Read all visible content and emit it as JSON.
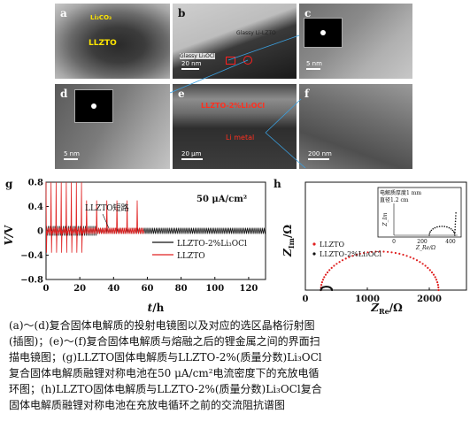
{
  "panels": {
    "a": {
      "label": "a",
      "material": "LLZTO",
      "label2": "Li₂CO₃"
    },
    "b": {
      "label": "b",
      "label_top": "Glassy Li-LZTO",
      "label_left": "Glassy Li₃OCl",
      "scale": "20 nm"
    },
    "c": {
      "label": "c",
      "scale": "5 nm"
    },
    "d": {
      "label": "d",
      "scale": "5 nm"
    },
    "e": {
      "label": "e",
      "text_top": "LLZTO-2%Li₃OCl",
      "text_mid": "Li metal",
      "scale": "20 μm"
    },
    "f": {
      "label": "f",
      "scale": "200 nm"
    }
  },
  "chart_g": {
    "label": "g",
    "current_density": "50 μA/cm²",
    "annotation": "LLZTO短路",
    "ylabel_v": "V",
    "ylabel_unit": "V",
    "xlabel_t": "t",
    "xlabel_unit": "h",
    "legend": [
      "LLZTO-2%Li₃OCl",
      "LLZTO"
    ],
    "colors": {
      "composite": "#111111",
      "llzto": "#e02020"
    },
    "chart_data": {
      "type": "line",
      "xlim": [
        0,
        130
      ],
      "ylim": [
        -0.8,
        0.8
      ],
      "xticks": [
        "0",
        "20",
        "40",
        "60",
        "80",
        "100",
        "120"
      ],
      "yticks": [
        "0.8",
        "0.4",
        "0",
        "−0.4",
        "−0.8"
      ],
      "series": [
        {
          "name": "LLZTO",
          "x_range": [
            0,
            58
          ],
          "amplitude_spikes": 0.8,
          "short_circuit_at": 58
        },
        {
          "name": "LLZTO-2%Li₃OCl",
          "x_range": [
            0,
            130
          ],
          "amplitude": 0.05
        }
      ]
    }
  },
  "chart_h": {
    "label": "h",
    "ylabel": "Z",
    "ylabel_sub": "Im",
    "ylabel_unit": "Ω",
    "xlabel": "Z",
    "xlabel_sub": "Re",
    "xlabel_unit": "Ω",
    "legend": [
      "LLZTO",
      "LLZTO-2%Li₃OCl"
    ],
    "inset_note": [
      "电解质厚度1 mm",
      "直径1.2 cm"
    ],
    "inset_ylabel": "Z_Im",
    "inset_xlabel": "Z_Re/Ω",
    "inset_xticks": [
      "0",
      "200",
      "400"
    ],
    "colors": {
      "llzto": "#e02020",
      "composite": "#111111"
    },
    "chart_data": {
      "type": "scatter",
      "xticks": [
        "0",
        "1000",
        "2000"
      ],
      "xlim": [
        0,
        2600
      ],
      "ylim": [
        0,
        1400
      ],
      "series": [
        {
          "name": "LLZTO",
          "semicircle_from": 250,
          "semicircle_to": 2150,
          "peak": 500
        },
        {
          "name": "LLZTO-2%Li₃OCl",
          "semicircle_from": 250,
          "semicircle_to": 430,
          "peak": 45
        }
      ]
    }
  },
  "caption": [
    "(a)～(d)复合固体电解质的投射电镜图以及对应的选区晶格衍射图",
    "(插图)；(e)～(f)复合固体电解质与熔融之后的锂金属之间的界面扫",
    "描电镜图；(g)LLZTO固体电解质与LLZTO-2%(质量分数)Li₃OCl",
    "复合固体电解质融锂对称电池在50 μA/cm²电流密度下的充放电循",
    "环图；(h)LLZTO固体电解质与LLZTO-2%(质量分数)Li₃OCl复合",
    "固体电解质融锂对称电池在充放电循环之前的交流阻抗谱图"
  ]
}
